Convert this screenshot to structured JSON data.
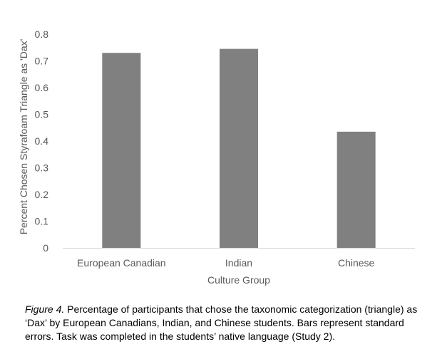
{
  "chart_data": {
    "type": "bar",
    "categories": [
      "European Canadian",
      "Indian",
      "Chinese"
    ],
    "values": [
      0.73,
      0.745,
      0.435
    ],
    "bar_color": "#808080",
    "xlabel": "Culture Group",
    "ylabel": "Percent Chosen Styrafoam Triangle as 'Dax'",
    "ylim": [
      0,
      0.8
    ],
    "yticks": [
      "0",
      "0.1",
      "0.2",
      "0.3",
      "0.4",
      "0.5",
      "0.6",
      "0.7",
      "0.8"
    ],
    "grid": false,
    "legend": "none"
  },
  "caption": {
    "label": "Figure 4.",
    "text": " Percentage of participants that chose the taxonomic categorization (triangle) as ‘Dax’ by European Canadians, Indian, and Chinese students. Bars represent standard errors. Task was completed in the students’ native language (Study 2)."
  }
}
